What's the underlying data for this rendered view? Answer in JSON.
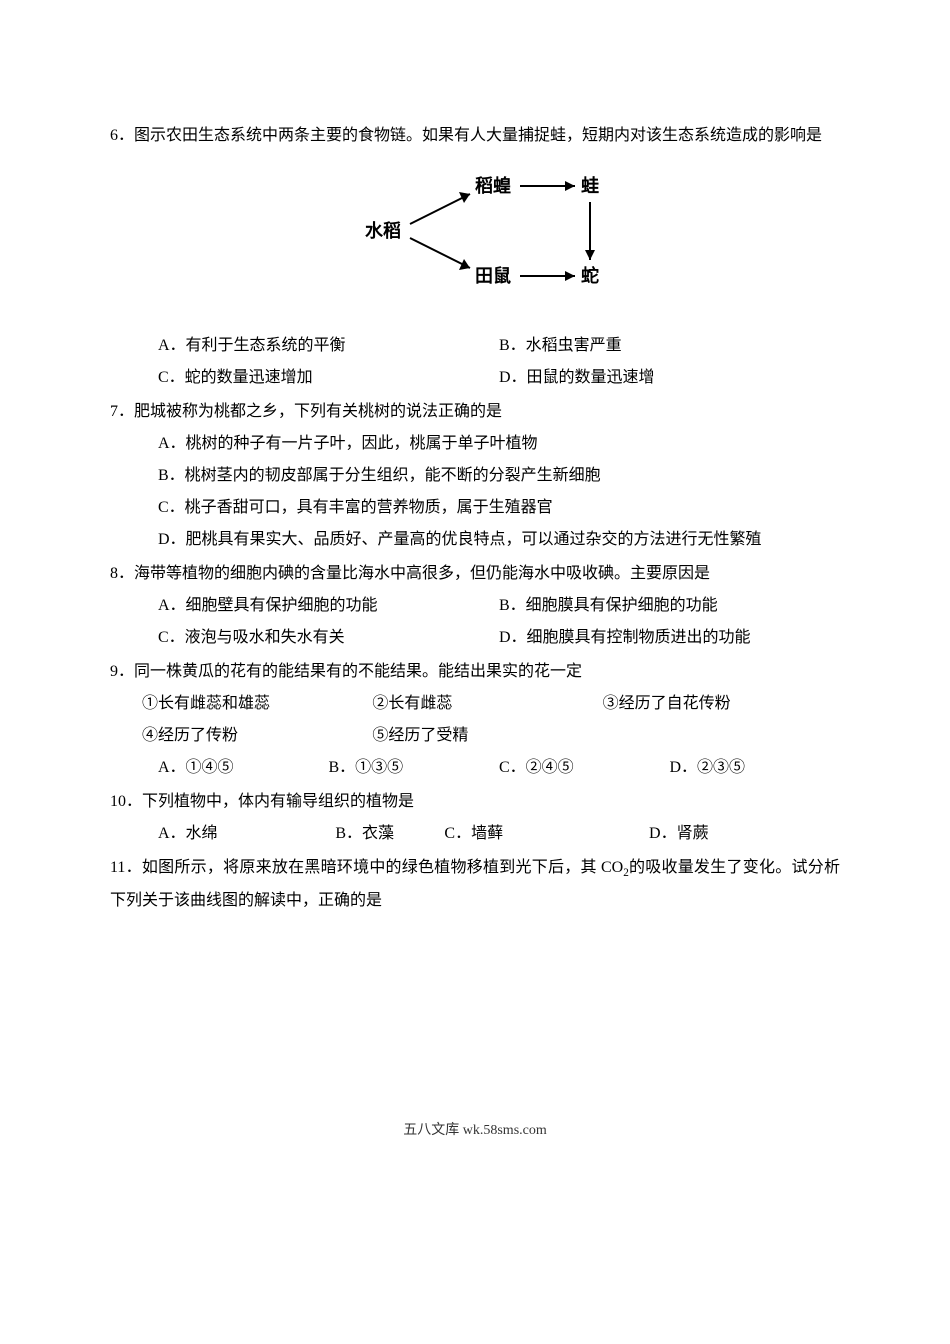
{
  "q6": {
    "stem": "6．图示农田生态系统中两条主要的食物链。如果有人大量捕捉蛙，短期内对该生态系统造成的影响是",
    "diagram_svg": "<svg width=\"300\" height=\"140\" viewBox=\"0 0 300 140\"><text x=\"40\" y=\"75\" data-name=\"diagram-node-rice\" data-interactable=\"false\">水稻</text><line x1=\"85\" y1=\"62\" x2=\"145\" y2=\"32\" stroke=\"#000\" stroke-width=\"2\"/><polygon points=\"145,32 134,30 139,41\" fill=\"#000\"/><line x1=\"85\" y1=\"76\" x2=\"145\" y2=\"106\" stroke=\"#000\" stroke-width=\"2\"/><polygon points=\"145,106 139,97 134,108\" fill=\"#000\"/><text x=\"150\" y=\"30\" data-name=\"diagram-node-locust\" data-interactable=\"false\">稻蝗</text><text x=\"150\" y=\"120\" data-name=\"diagram-node-rat\" data-interactable=\"false\">田鼠</text><line x1=\"195\" y1=\"24\" x2=\"250\" y2=\"24\" stroke=\"#000\" stroke-width=\"2\"/><polygon points=\"250,24 240,19 240,29\" fill=\"#000\"/><line x1=\"195\" y1=\"114\" x2=\"250\" y2=\"114\" stroke=\"#000\" stroke-width=\"2\"/><polygon points=\"250,114 240,109 240,119\" fill=\"#000\"/><text x=\"256\" y=\"30\" data-name=\"diagram-node-frog\" data-interactable=\"false\">蛙</text><text x=\"256\" y=\"120\" data-name=\"diagram-node-snake\" data-interactable=\"false\">蛇</text><line x1=\"265\" y1=\"40\" x2=\"265\" y2=\"98\" stroke=\"#000\" stroke-width=\"2\"/><polygon points=\"265,98 260,88 270,88\" fill=\"#000\"/></svg>",
    "a": "A．有利于生态系统的平衡",
    "b": "B．水稻虫害严重",
    "c": "C．蛇的数量迅速增加",
    "d": "D．田鼠的数量迅速增"
  },
  "q7": {
    "stem": "7．肥城被称为桃都之乡，下列有关桃树的说法正确的是",
    "a": "A．桃树的种子有一片子叶，因此，桃属于单子叶植物",
    "b": "B．桃树茎内的韧皮部属于分生组织，能不断的分裂产生新细胞",
    "c": "C．桃子香甜可口，具有丰富的营养物质，属于生殖器官",
    "d": "D．肥桃具有果实大、品质好、产量高的优良特点，可以通过杂交的方法进行无性繁殖"
  },
  "q8": {
    "stem": "8．海带等植物的细胞内碘的含量比海水中高很多，但仍能海水中吸收碘。主要原因是",
    "a": "A．细胞壁具有保护细胞的功能",
    "b": "B．细胞膜具有保护细胞的功能",
    "c": "C．液泡与吸水和失水有关",
    "d": "D．细胞膜具有控制物质进出的功能"
  },
  "q9": {
    "stem": "9．同一株黄瓜的花有的能结果有的不能结果。能结出果实的花一定",
    "i1": "①长有雌蕊和雄蕊",
    "i2": "②长有雌蕊",
    "i3": "③经历了自花传粉",
    "i4": "④经历了传粉",
    "i5": "⑤经历了受精",
    "a": "A．①④⑤",
    "b": "B．①③⑤",
    "c": "C．②④⑤",
    "d": "D．②③⑤"
  },
  "q10": {
    "stem": "10．下列植物中，体内有输导组织的植物是",
    "a": "A．水绵",
    "b": "B．衣藻",
    "c": "C．墙藓",
    "d": "D．肾蕨"
  },
  "q11": {
    "stem_pre": "11．如图所示，将原来放在黑暗环境中的绿色植物移植到光下后，其 CO",
    "stem_sub": "2",
    "stem_post": "的吸收量发生了变化。试分析下列关于该曲线图的解读中，正确的是"
  },
  "footer": "五八文库 wk.58sms.com"
}
